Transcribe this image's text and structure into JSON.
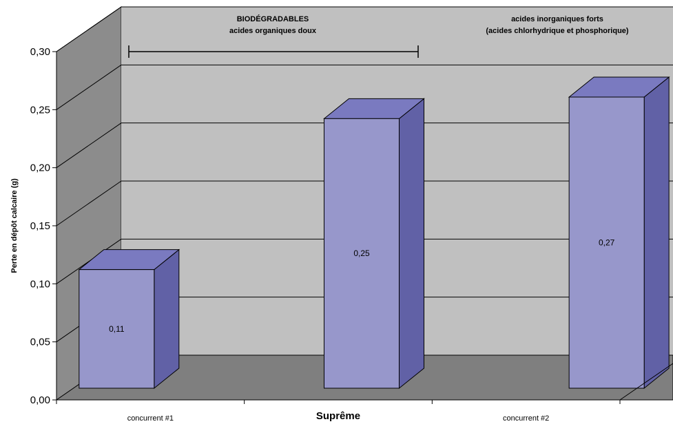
{
  "chart_data": {
    "type": "bar",
    "categories": [
      "concurrent #1",
      "Suprême",
      "concurrent #2"
    ],
    "highlight_category": "Suprême",
    "values": [
      0.11,
      0.25,
      0.27
    ],
    "data_labels": [
      "0,11",
      "0,25",
      "0,27"
    ],
    "ylabel": "Perte en dépôt calcaire (g)",
    "ylim": [
      0,
      0.3
    ],
    "yticks": [
      "0,00",
      "0,05",
      "0,10",
      "0,15",
      "0,20",
      "0,25",
      "0,30"
    ],
    "grid": true,
    "annotations": [
      {
        "lines": [
          "BIODÉGRADABLES",
          "acides organiques doux"
        ],
        "spans": [
          "concurrent #1",
          "Suprême"
        ]
      },
      {
        "lines": [
          "acides inorganiques forts",
          "(acides chlorhydrique et phosphorique)"
        ],
        "spans": [
          "concurrent #2"
        ]
      }
    ],
    "colors": {
      "bar_front": "#9797CB",
      "bar_side": "#6161A6",
      "bar_top": "#7A7AC0",
      "back_wall": "#C0C0C0",
      "side_wall": "#8C8C8C",
      "floor": "#7F7F7F"
    }
  }
}
